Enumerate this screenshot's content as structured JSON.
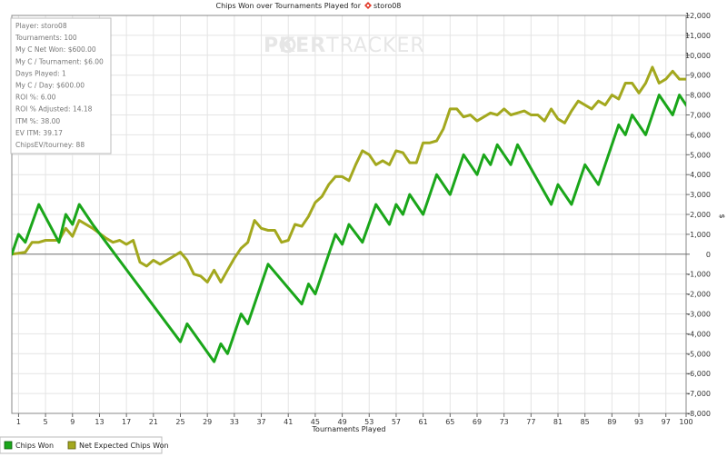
{
  "chart_data": {
    "type": "line",
    "title": "Chips Won over Tournaments Played for",
    "player_name": "storo08",
    "xlabel": "Tournaments Played",
    "ylabel": "$",
    "xlim": [
      0,
      100
    ],
    "ylim": [
      -8000,
      12000
    ],
    "x_ticks": [
      1,
      5,
      9,
      13,
      17,
      21,
      25,
      29,
      33,
      37,
      41,
      45,
      49,
      53,
      57,
      61,
      65,
      69,
      73,
      77,
      81,
      85,
      89,
      93,
      97,
      100
    ],
    "y_ticks": [
      -8000,
      -7000,
      -6000,
      -5000,
      -4000,
      -3000,
      -2000,
      -1000,
      0,
      1000,
      2000,
      3000,
      4000,
      5000,
      6000,
      7000,
      8000,
      9000,
      10000,
      11000,
      12000
    ],
    "y_tick_labels": [
      "-8,000",
      "-7,000",
      "-6,000",
      "-5,000",
      "-4,000",
      "-3,000",
      "-2,000",
      "-1,000",
      "0",
      "1,000",
      "2,000",
      "3,000",
      "4,000",
      "5,000",
      "6,000",
      "7,000",
      "8,000",
      "9,000",
      "10,000",
      "11,000",
      "12,000"
    ],
    "legend": "bottom-left",
    "series": [
      {
        "name": "Chips Won",
        "color": "#1aa61a",
        "points": [
          [
            0,
            0
          ],
          [
            1,
            1000
          ],
          [
            2,
            600
          ],
          [
            4,
            2500
          ],
          [
            7,
            600
          ],
          [
            8,
            2000
          ],
          [
            9,
            1500
          ],
          [
            10,
            2500
          ],
          [
            12,
            1500
          ],
          [
            25,
            -4400
          ],
          [
            26,
            -3500
          ],
          [
            30,
            -5400
          ],
          [
            31,
            -4500
          ],
          [
            32,
            -5000
          ],
          [
            34,
            -3000
          ],
          [
            35,
            -3500
          ],
          [
            38,
            -500
          ],
          [
            43,
            -2500
          ],
          [
            44,
            -1500
          ],
          [
            45,
            -2000
          ],
          [
            48,
            1000
          ],
          [
            49,
            500
          ],
          [
            50,
            1500
          ],
          [
            52,
            600
          ],
          [
            54,
            2500
          ],
          [
            56,
            1500
          ],
          [
            57,
            2500
          ],
          [
            58,
            2000
          ],
          [
            59,
            3000
          ],
          [
            61,
            2000
          ],
          [
            63,
            4000
          ],
          [
            65,
            3000
          ],
          [
            67,
            5000
          ],
          [
            69,
            4000
          ],
          [
            70,
            5000
          ],
          [
            71,
            4500
          ],
          [
            72,
            5500
          ],
          [
            74,
            4500
          ],
          [
            75,
            5500
          ],
          [
            80,
            2500
          ],
          [
            81,
            3500
          ],
          [
            83,
            2500
          ],
          [
            85,
            4500
          ],
          [
            87,
            3500
          ],
          [
            90,
            6500
          ],
          [
            91,
            6000
          ],
          [
            92,
            7000
          ],
          [
            94,
            6000
          ],
          [
            96,
            8000
          ],
          [
            98,
            7000
          ],
          [
            99,
            8000
          ],
          [
            101,
            7000
          ]
        ]
      },
      {
        "name": "Net Expected Chips Won",
        "color": "#a3a81e",
        "points": [
          [
            0,
            0
          ],
          [
            2,
            100
          ],
          [
            3,
            600
          ],
          [
            4,
            600
          ],
          [
            5,
            700
          ],
          [
            6,
            700
          ],
          [
            7,
            700
          ],
          [
            8,
            1300
          ],
          [
            9,
            900
          ],
          [
            10,
            1700
          ],
          [
            12,
            1300
          ],
          [
            14,
            800
          ],
          [
            15,
            600
          ],
          [
            16,
            700
          ],
          [
            17,
            500
          ],
          [
            18,
            700
          ],
          [
            19,
            -400
          ],
          [
            20,
            -600
          ],
          [
            21,
            -300
          ],
          [
            22,
            -500
          ],
          [
            23,
            -300
          ],
          [
            24,
            -100
          ],
          [
            25,
            100
          ],
          [
            26,
            -300
          ],
          [
            27,
            -1000
          ],
          [
            28,
            -1100
          ],
          [
            29,
            -1400
          ],
          [
            30,
            -800
          ],
          [
            31,
            -1400
          ],
          [
            32,
            -800
          ],
          [
            33,
            -200
          ],
          [
            34,
            300
          ],
          [
            35,
            600
          ],
          [
            36,
            1700
          ],
          [
            37,
            1300
          ],
          [
            38,
            1200
          ],
          [
            39,
            1200
          ],
          [
            40,
            600
          ],
          [
            41,
            700
          ],
          [
            42,
            1500
          ],
          [
            43,
            1400
          ],
          [
            44,
            1900
          ],
          [
            45,
            2600
          ],
          [
            46,
            2900
          ],
          [
            47,
            3500
          ],
          [
            48,
            3900
          ],
          [
            49,
            3900
          ],
          [
            50,
            3700
          ],
          [
            51,
            4500
          ],
          [
            52,
            5200
          ],
          [
            53,
            5000
          ],
          [
            54,
            4500
          ],
          [
            55,
            4700
          ],
          [
            56,
            4500
          ],
          [
            57,
            5200
          ],
          [
            58,
            5100
          ],
          [
            59,
            4600
          ],
          [
            60,
            4600
          ],
          [
            61,
            5600
          ],
          [
            62,
            5600
          ],
          [
            63,
            5700
          ],
          [
            64,
            6300
          ],
          [
            65,
            7300
          ],
          [
            66,
            7300
          ],
          [
            67,
            6900
          ],
          [
            68,
            7000
          ],
          [
            69,
            6700
          ],
          [
            70,
            6900
          ],
          [
            71,
            7100
          ],
          [
            72,
            7000
          ],
          [
            73,
            7300
          ],
          [
            74,
            7000
          ],
          [
            75,
            7100
          ],
          [
            76,
            7200
          ],
          [
            77,
            7000
          ],
          [
            78,
            7000
          ],
          [
            79,
            6700
          ],
          [
            80,
            7300
          ],
          [
            81,
            6800
          ],
          [
            82,
            6600
          ],
          [
            83,
            7200
          ],
          [
            84,
            7700
          ],
          [
            85,
            7500
          ],
          [
            86,
            7300
          ],
          [
            87,
            7700
          ],
          [
            88,
            7500
          ],
          [
            89,
            8000
          ],
          [
            90,
            7800
          ],
          [
            91,
            8600
          ],
          [
            92,
            8600
          ],
          [
            93,
            8100
          ],
          [
            94,
            8600
          ],
          [
            95,
            9400
          ],
          [
            96,
            8600
          ],
          [
            97,
            8800
          ],
          [
            98,
            9200
          ],
          [
            99,
            8800
          ],
          [
            100,
            8800
          ]
        ]
      }
    ]
  },
  "brand": {
    "watermark_part1": "P",
    "watermark_part2": "KER",
    "watermark_part3": "TRACKER"
  },
  "stats": [
    "Player: storo08",
    "Tournaments: 100",
    "My C Net Won: $600.00",
    "My C / Tournament: $6.00",
    "Days Played: 1",
    "My C / Day: $600.00",
    "ROI %: 6.00",
    "ROI % Adjusted: 14.18",
    "ITM %: 38.00",
    "EV ITM: 39.17",
    "ChipsEV/tourney: 88"
  ],
  "colors": {
    "chips_won": "#1aa61a",
    "net_expected": "#a3a81e",
    "grid": "#e4e4e4",
    "zero_line": "#777777"
  },
  "icons": {
    "player_icon": "poker-card-icon"
  }
}
